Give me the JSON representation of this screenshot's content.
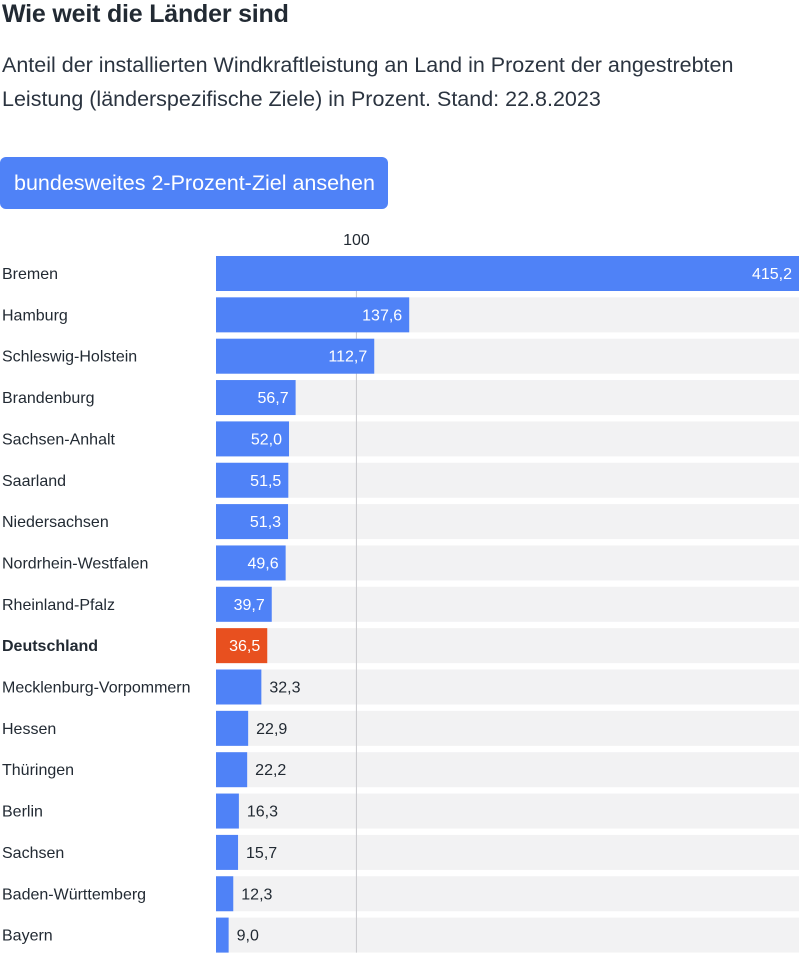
{
  "header": {
    "title": "Wie weit die Länder sind",
    "subtitle": "Anteil der installierten Windkraftleistung an Land in Prozent der angestrebten Leistung (länderspezifische Ziele) in Prozent. Stand: 22.8.2023",
    "toggle_button_label": "bundesweites 2-Prozent-Ziel ansehen"
  },
  "colors": {
    "bar": "#4f82f7",
    "highlight_bar": "#e8501f",
    "track": "#f2f2f3",
    "reference_line": "#c8c8cc",
    "value_inside": "#ffffff",
    "value_outside": "#222a33"
  },
  "chart_data": {
    "type": "bar",
    "orientation": "horizontal",
    "categories": [
      "Bremen",
      "Hamburg",
      "Schleswig-Holstein",
      "Brandenburg",
      "Sachsen-Anhalt",
      "Saarland",
      "Niedersachsen",
      "Nordrhein-Westfalen",
      "Rheinland-Pfalz",
      "Deutschland",
      "Mecklenburg-Vorpommern",
      "Hessen",
      "Thüringen",
      "Berlin",
      "Sachsen",
      "Baden-Württemberg",
      "Bayern"
    ],
    "values": [
      415.2,
      137.6,
      112.7,
      56.7,
      52.0,
      51.5,
      51.3,
      49.6,
      39.7,
      36.5,
      32.3,
      22.9,
      22.2,
      16.3,
      15.7,
      12.3,
      9.0
    ],
    "value_labels": [
      "415,2",
      "137,6",
      "112,7",
      "56,7",
      "52,0",
      "51,5",
      "51,3",
      "49,6",
      "39,7",
      "36,5",
      "32,3",
      "22,9",
      "22,2",
      "16,3",
      "15,7",
      "12,3",
      "9,0"
    ],
    "highlight_category": "Deutschland",
    "reference_line": {
      "value": 100,
      "label": "100"
    },
    "xlim": [
      0,
      415.2
    ],
    "title": "Wie weit die Länder sind",
    "subtitle": "Anteil der installierten Windkraftleistung an Land in Prozent der angestrebten Leistung (länderspezifische Ziele) in Prozent. Stand: 22.8.2023",
    "xlabel": "",
    "ylabel": "",
    "grid": false
  }
}
